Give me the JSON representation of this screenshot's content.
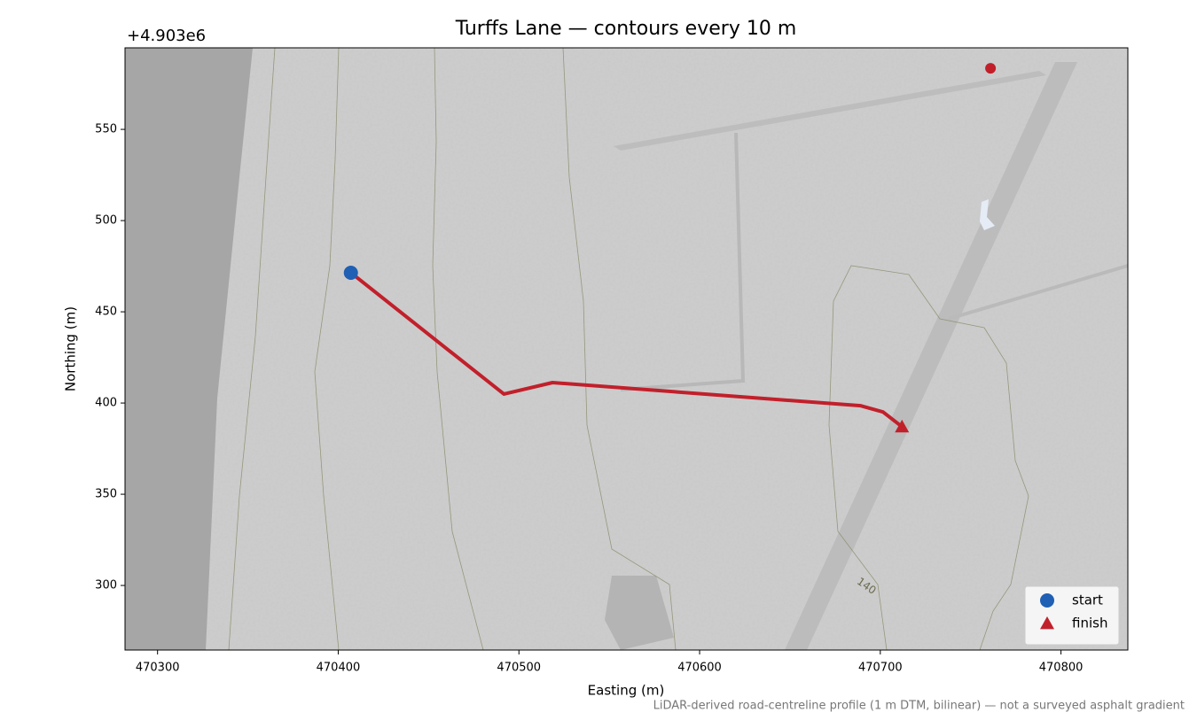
{
  "chart_data": {
    "type": "map",
    "title": "Turffs Lane — contours every 10 m",
    "x_label": "Easting (m)",
    "y_label": "Northing (m)",
    "y_offset_label": "+4.903e6",
    "footnote": "LiDAR-derived road-centreline profile (1 m DTM, bilinear) — not a surveyed asphalt gradient",
    "xlim": [
      470282,
      470837
    ],
    "ylim": [
      264.6,
      594.7
    ],
    "xticks": [
      470300,
      470400,
      470500,
      470600,
      470700,
      470800
    ],
    "yticks": [
      300,
      350,
      400,
      450,
      500,
      550
    ],
    "route": {
      "color": "#c1202b",
      "x": [
        470407,
        470491.7,
        470518.6,
        470689.2,
        470701.5,
        470712
      ],
      "y": [
        471.4,
        404.9,
        411.2,
        398.5,
        395.1,
        387
      ]
    },
    "series": [
      {
        "name": "start",
        "marker": "circle",
        "color": "#1f5fb4",
        "x": [
          470407
        ],
        "y": [
          471.4
        ]
      },
      {
        "name": "finish",
        "marker": "triangle",
        "color": "#c1202b",
        "x": [
          470712
        ],
        "y": [
          387
        ]
      }
    ],
    "points": {
      "color": "#c1202b",
      "x": [
        470761
      ],
      "y": [
        583.5
      ]
    },
    "contour_label": "140",
    "legend": "lower right"
  }
}
